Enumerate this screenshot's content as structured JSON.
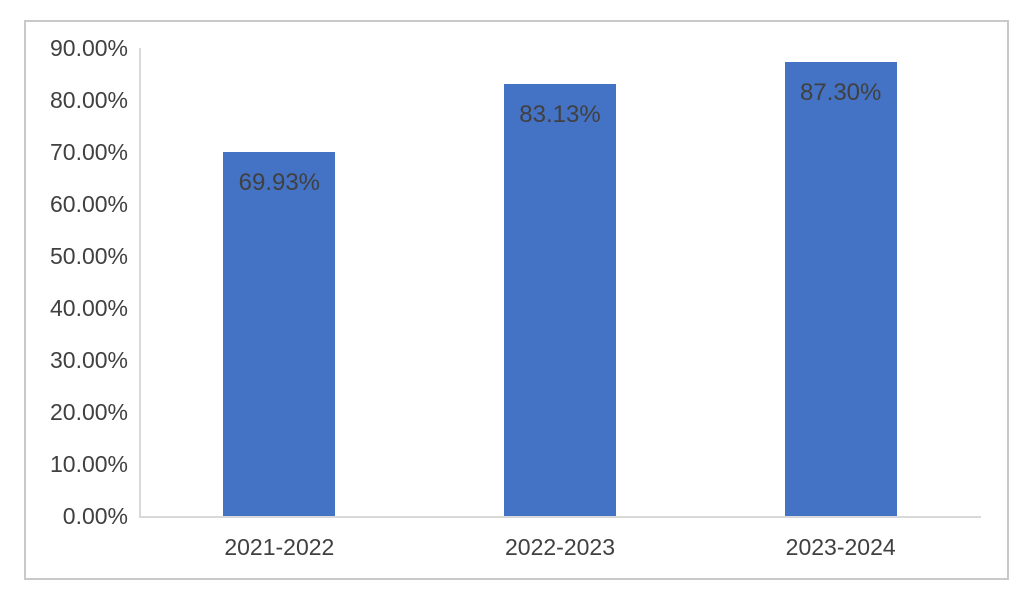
{
  "chart_data": {
    "type": "bar",
    "title": "",
    "categories": [
      "2021-2022",
      "2022-2023",
      "2023-2024"
    ],
    "values": [
      69.93,
      83.13,
      87.3
    ],
    "value_labels": [
      "69.93%",
      "83.13%",
      "87.30%"
    ],
    "ytick_values": [
      0,
      10,
      20,
      30,
      40,
      50,
      60,
      70,
      80,
      90
    ],
    "ytick_labels": [
      "0.00%",
      "10.00%",
      "20.00%",
      "30.00%",
      "40.00%",
      "50.00%",
      "60.00%",
      "70.00%",
      "80.00%",
      "90.00%"
    ],
    "ylim": [
      0,
      90
    ],
    "xlabel": "",
    "ylabel": "",
    "grid": false,
    "legend_position": "none",
    "colors": {
      "bar": "#4472C4",
      "text": "#404040",
      "axis_line": "#D9D9D9",
      "frame_border": "#C9C9C9",
      "background": "#FFFFFF"
    }
  }
}
